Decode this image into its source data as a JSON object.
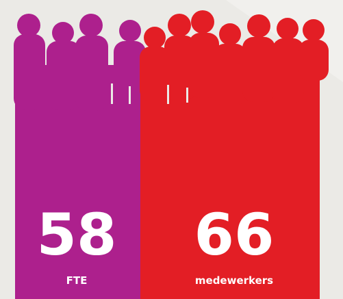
{
  "panels": [
    {
      "value": 58,
      "label": "FTE"
    },
    {
      "value": 66,
      "label": "medewerkers"
    }
  ]
}
